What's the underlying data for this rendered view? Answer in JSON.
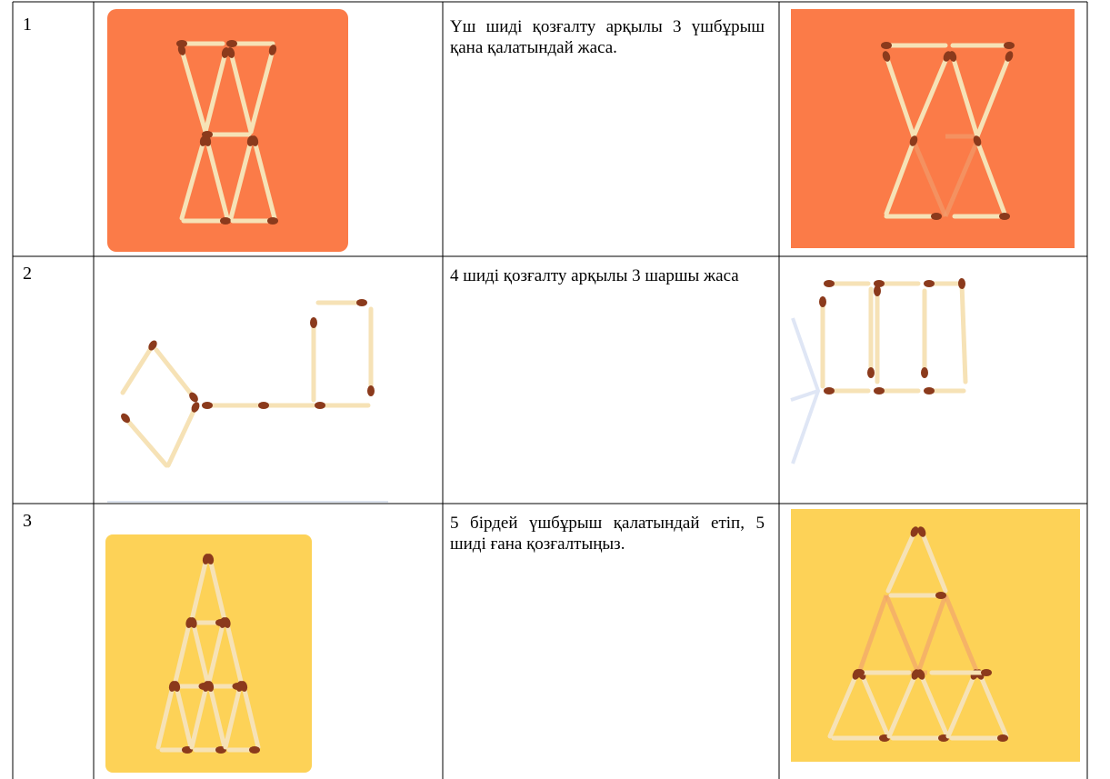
{
  "table": {
    "rows": [
      [
        "1",
        "Үш шиді қозғалту арқылы 3 үшбұрыш қана қалатындай жаса."
      ],
      [
        "2",
        "4 шиді қозғалту арқылы 3 шаршы жаса"
      ],
      [
        "3",
        "5 бірдей үшбұрыш қалатындай етіп, 5 шиді ғана қозғалтыңыз."
      ]
    ]
  }
}
